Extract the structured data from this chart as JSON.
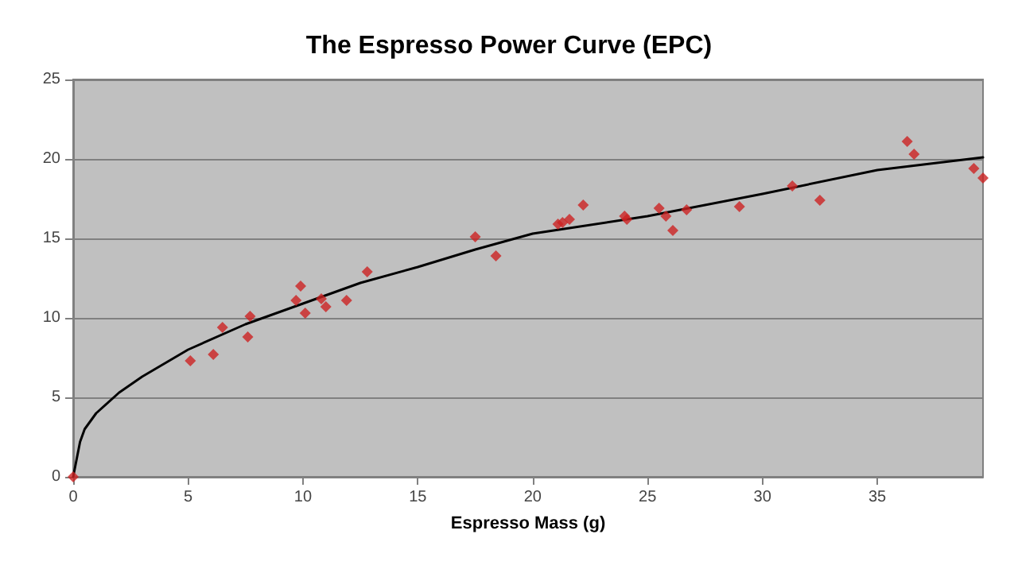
{
  "chart_data": {
    "type": "scatter",
    "title": "The Espresso Power Curve (EPC)",
    "xlabel": "Espresso Mass (g)",
    "xlim": [
      0,
      39.6
    ],
    "xticks": [
      0,
      5,
      10,
      15,
      20,
      25,
      30,
      35
    ],
    "ylim": [
      0,
      25
    ],
    "yticks": [
      0,
      5,
      10,
      15,
      20,
      25
    ],
    "grid": "y",
    "marker": "diamond",
    "series": [
      {
        "color": "#cc2222",
        "x": [
          0,
          5.1,
          6.1,
          6.5,
          7.6,
          7.7,
          9.7,
          9.9,
          10.1,
          10.8,
          11,
          11.9,
          12.8,
          17.5,
          18.4,
          21.1,
          21.3,
          21.6,
          22.2,
          24,
          24.1,
          25.5,
          25.8,
          26.1,
          26.7,
          29,
          31.3,
          32.5,
          36.3,
          36.6,
          39.2,
          39.6
        ],
        "values": [
          0,
          7.3,
          7.7,
          9.4,
          8.8,
          10.1,
          11.1,
          12,
          10.3,
          11.2,
          10.7,
          11.1,
          12.9,
          15.1,
          13.9,
          15.9,
          16,
          16.2,
          17.1,
          16.4,
          16.2,
          16.9,
          16.4,
          15.5,
          16.8,
          17,
          18.3,
          17.4,
          21.1,
          20.3,
          19.4,
          18.8
        ]
      },
      {
        "type": "line",
        "color": "#000000",
        "marker": "none",
        "x": [
          0,
          0.3,
          0.5,
          1,
          2,
          3,
          5,
          7.5,
          10,
          12.5,
          15,
          17.5,
          20,
          25,
          30,
          35,
          39.6
        ],
        "values": [
          0,
          2.2,
          3,
          4,
          5.3,
          6.3,
          8,
          9.6,
          10.9,
          12.2,
          13.2,
          14.3,
          15.3,
          16.4,
          17.8,
          19.3,
          20.1
        ]
      }
    ]
  }
}
